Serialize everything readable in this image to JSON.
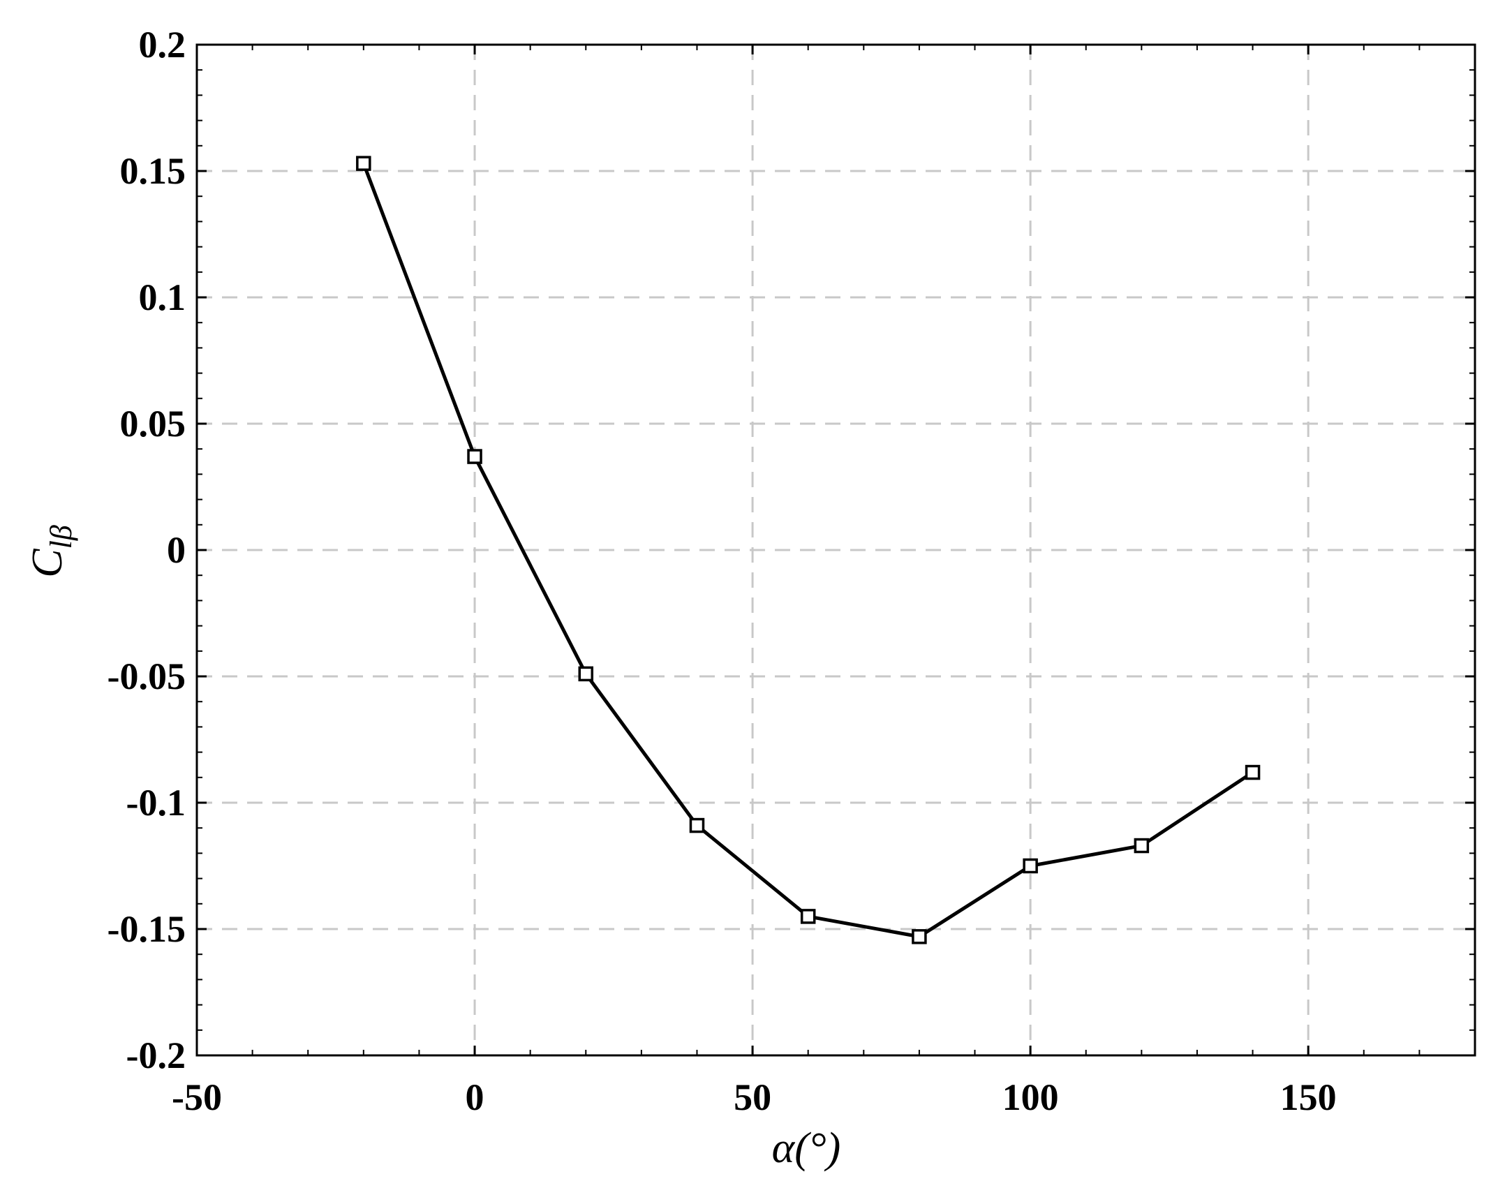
{
  "chart_data": {
    "type": "line",
    "xlabel": "α(°)",
    "ylabel": "C_lβ",
    "xlim": [
      -50,
      180
    ],
    "ylim": [
      -0.2,
      0.2
    ],
    "xticks": [
      -50,
      0,
      50,
      100,
      150
    ],
    "yticks": [
      -0.2,
      -0.15,
      -0.1,
      -0.05,
      0,
      0.05,
      0.1,
      0.15,
      0.2
    ],
    "xtick_labels": [
      "-50",
      "0",
      "50",
      "100",
      "150"
    ],
    "ytick_labels": [
      "-0.2",
      "-0.15",
      "-0.1",
      "-0.05",
      "0",
      "0.05",
      "0.1",
      "0.15",
      "0.2"
    ],
    "grid": true,
    "marker": "square",
    "line_color": "#000000",
    "grid_color": "#c8c8c8",
    "series": [
      {
        "x": [
          -20,
          0,
          20,
          40,
          60,
          80,
          100,
          120,
          140
        ],
        "y": [
          0.153,
          0.037,
          -0.049,
          -0.109,
          -0.145,
          -0.153,
          -0.125,
          -0.117,
          -0.088
        ]
      }
    ]
  }
}
